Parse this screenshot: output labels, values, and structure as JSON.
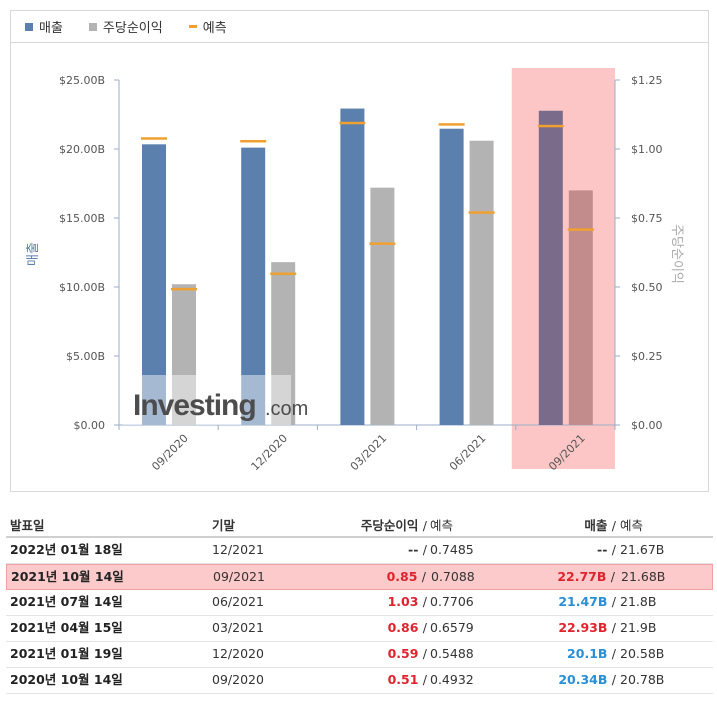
{
  "legend": [
    {
      "label": "매출",
      "color": "#5b80ad"
    },
    {
      "label": "주당순이익",
      "color": "#b3b3b3"
    },
    {
      "label": "예측",
      "color": "#f0a030"
    }
  ],
  "watermark": {
    "brand": "Investing",
    "suffix": ".com"
  },
  "chart_data": {
    "type": "bar",
    "categories": [
      "09/2020",
      "12/2020",
      "03/2021",
      "06/2021",
      "09/2021"
    ],
    "highlight_category": "09/2021",
    "left_axis": {
      "label": "매출",
      "ylim": [
        0,
        25
      ],
      "ticks": [
        "$0.00",
        "$5.00B",
        "$10.00B",
        "$15.00B",
        "$20.00B",
        "$25.00B"
      ],
      "tick_values": [
        0,
        5,
        10,
        15,
        20,
        25
      ]
    },
    "right_axis": {
      "label": "주당순이익",
      "ylim": [
        0,
        1.25
      ],
      "ticks": [
        "$0.00",
        "$0.25",
        "$0.50",
        "$0.75",
        "$1.00",
        "$1.25"
      ],
      "tick_values": [
        0,
        0.25,
        0.5,
        0.75,
        1.0,
        1.25
      ]
    },
    "series": [
      {
        "name": "매출",
        "axis": "left",
        "color": "#5b80ad",
        "values": [
          20.34,
          20.1,
          22.93,
          21.47,
          22.77
        ],
        "forecast": [
          20.78,
          20.58,
          21.9,
          21.8,
          21.68
        ]
      },
      {
        "name": "주당순이익",
        "axis": "right",
        "color": "#b3b3b3",
        "values": [
          0.51,
          0.59,
          0.86,
          1.03,
          0.85
        ],
        "forecast": [
          0.4932,
          0.5488,
          0.6579,
          0.7706,
          0.7088
        ]
      }
    ]
  },
  "table": {
    "headers": {
      "date": "발표일",
      "period": "기말",
      "eps": "주당순이익",
      "slash": "/",
      "eps_forecast": "예측",
      "revenue": "매출",
      "revenue_forecast": "예측"
    },
    "rows": [
      {
        "date": "2022년 01월 18일",
        "period": "12/2021",
        "eps": "--",
        "eps_forecast": "0.7485",
        "revenue": "--",
        "revenue_forecast": "21.67B",
        "eps_color": "neutral",
        "rev_color": "neutral",
        "highlight": false
      },
      {
        "date": "2021년 10월 14일",
        "period": "09/2021",
        "eps": "0.85",
        "eps_forecast": "0.7088",
        "revenue": "22.77B",
        "revenue_forecast": "21.68B",
        "eps_color": "red",
        "rev_color": "red",
        "highlight": true
      },
      {
        "date": "2021년 07월 14일",
        "period": "06/2021",
        "eps": "1.03",
        "eps_forecast": "0.7706",
        "revenue": "21.47B",
        "revenue_forecast": "21.8B",
        "eps_color": "red",
        "rev_color": "blue",
        "highlight": false
      },
      {
        "date": "2021년 04월 15일",
        "period": "03/2021",
        "eps": "0.86",
        "eps_forecast": "0.6579",
        "revenue": "22.93B",
        "revenue_forecast": "21.9B",
        "eps_color": "red",
        "rev_color": "red",
        "highlight": false
      },
      {
        "date": "2021년 01월 19일",
        "period": "12/2020",
        "eps": "0.59",
        "eps_forecast": "0.5488",
        "revenue": "20.1B",
        "revenue_forecast": "20.58B",
        "eps_color": "red",
        "rev_color": "blue",
        "highlight": false
      },
      {
        "date": "2020년 10월 14일",
        "period": "09/2020",
        "eps": "0.51",
        "eps_forecast": "0.4932",
        "revenue": "20.34B",
        "revenue_forecast": "20.78B",
        "eps_color": "red",
        "rev_color": "blue",
        "highlight": false
      }
    ]
  }
}
